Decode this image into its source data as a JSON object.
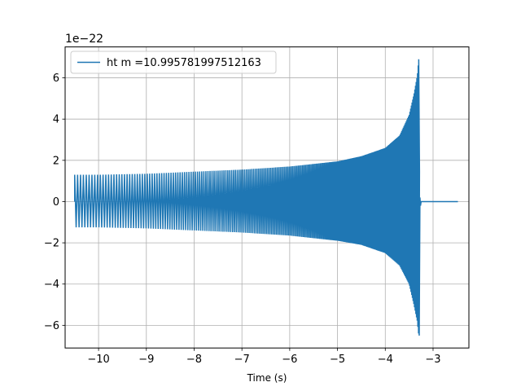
{
  "chart_data": {
    "type": "line",
    "title": "",
    "xlabel": "Time (s)",
    "ylabel": "",
    "y_offset_label": "1e−22",
    "xlim": [
      -10.7,
      -2.25
    ],
    "ylim": [
      -7.1,
      7.5
    ],
    "x_ticks": [
      -10,
      -9,
      -8,
      -7,
      -6,
      -5,
      -4,
      -3
    ],
    "x_tick_labels": [
      "−10",
      "−9",
      "−8",
      "−7",
      "−6",
      "−5",
      "−4",
      "−3"
    ],
    "y_ticks": [
      -6,
      -4,
      -2,
      0,
      2,
      4,
      6
    ],
    "y_tick_labels": [
      "−6",
      "−4",
      "−2",
      "0",
      "2",
      "4",
      "6"
    ],
    "grid": true,
    "legend_position": "top-left",
    "series": [
      {
        "name": "ht m =10.995781997512163",
        "color": "#1f77b4",
        "start_x": -10.5,
        "merger_x": -3.28,
        "end_x": -2.48,
        "envelope": [
          {
            "x": -10.5,
            "upper": 1.3,
            "lower": -1.25
          },
          {
            "x": -10.0,
            "upper": 1.3,
            "lower": -1.25
          },
          {
            "x": -9.0,
            "upper": 1.35,
            "lower": -1.3
          },
          {
            "x": -8.0,
            "upper": 1.45,
            "lower": -1.4
          },
          {
            "x": -7.0,
            "upper": 1.55,
            "lower": -1.5
          },
          {
            "x": -6.0,
            "upper": 1.7,
            "lower": -1.65
          },
          {
            "x": -5.0,
            "upper": 1.95,
            "lower": -1.9
          },
          {
            "x": -4.5,
            "upper": 2.2,
            "lower": -2.1
          },
          {
            "x": -4.0,
            "upper": 2.6,
            "lower": -2.5
          },
          {
            "x": -3.7,
            "upper": 3.2,
            "lower": -3.1
          },
          {
            "x": -3.5,
            "upper": 4.2,
            "lower": -4.0
          },
          {
            "x": -3.4,
            "upper": 5.2,
            "lower": -5.0
          },
          {
            "x": -3.33,
            "upper": 6.1,
            "lower": -5.8
          },
          {
            "x": -3.3,
            "upper": 6.9,
            "lower": -6.5
          },
          {
            "x": -3.28,
            "upper": 0.2,
            "lower": -0.2
          },
          {
            "x": -3.25,
            "upper": 0.0,
            "lower": 0.0
          },
          {
            "x": -2.48,
            "upper": 0.0,
            "lower": 0.0
          }
        ]
      }
    ]
  }
}
